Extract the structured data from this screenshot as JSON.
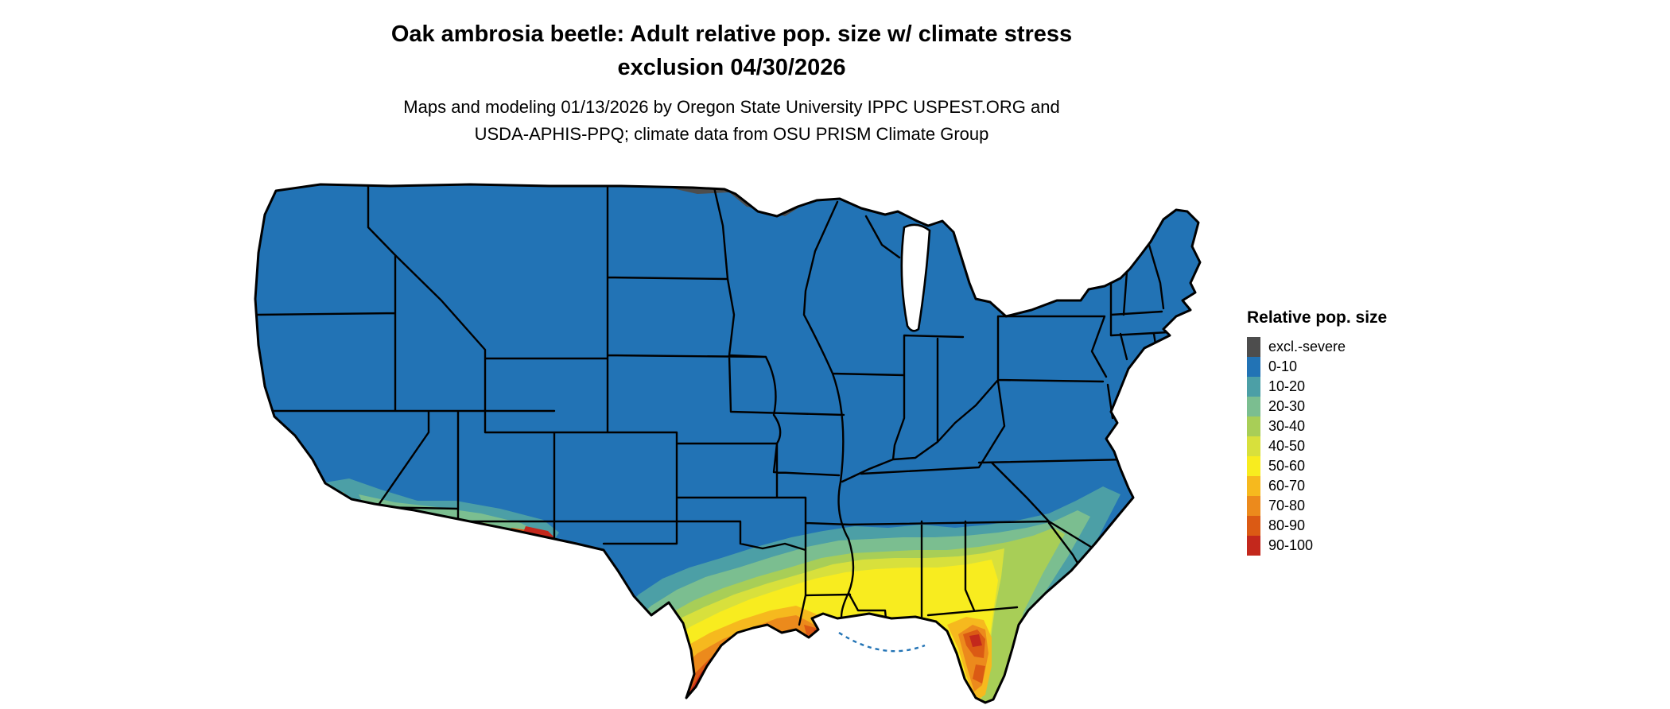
{
  "header": {
    "title_line1": "Oak ambrosia beetle: Adult relative pop. size w/ climate stress",
    "title_line2": "exclusion 04/30/2026",
    "subtitle_line1": "Maps and modeling 01/13/2026 by Oregon State University IPPC USPEST.ORG and",
    "subtitle_line2": "USDA-APHIS-PPQ; climate data from OSU PRISM Climate Group"
  },
  "legend": {
    "title": "Relative pop. size",
    "items": [
      {
        "label": "excl.-severe",
        "color": "#4D4D4D"
      },
      {
        "label": "0-10",
        "color": "#2273B5"
      },
      {
        "label": "10-20",
        "color": "#4C9FA6"
      },
      {
        "label": "20-30",
        "color": "#7BBE90"
      },
      {
        "label": "30-40",
        "color": "#A8CE57"
      },
      {
        "label": "40-50",
        "color": "#D8E03C"
      },
      {
        "label": "50-60",
        "color": "#F8EC1F"
      },
      {
        "label": "60-70",
        "color": "#F6B91E"
      },
      {
        "label": "70-80",
        "color": "#EC8A1C"
      },
      {
        "label": "80-90",
        "color": "#DB5A14"
      },
      {
        "label": "90-100",
        "color": "#C3281C"
      }
    ]
  },
  "map": {
    "border_color": "#000000",
    "background_color": "#FFFFFF"
  }
}
